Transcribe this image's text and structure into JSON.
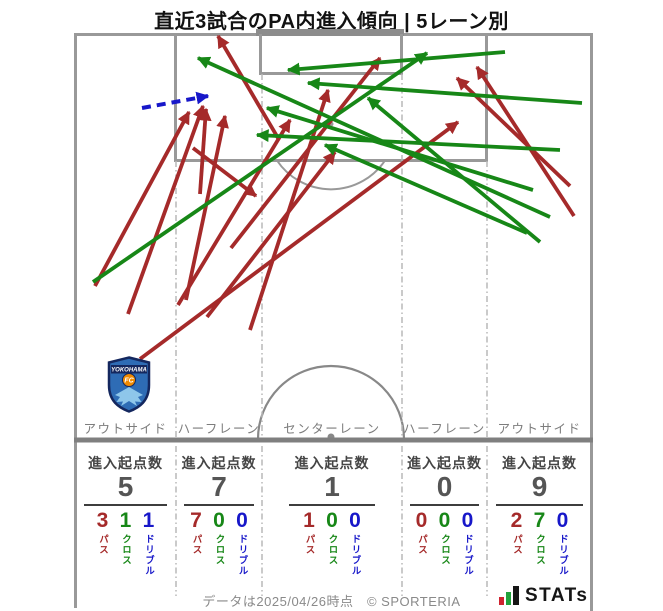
{
  "title": "直近3試合のPA内進入傾向 | 5レーン別",
  "stat_header": "進入起点数",
  "metric_labels": {
    "pass": "パス",
    "cross": "クロス",
    "dribble": "ドリブル"
  },
  "colors": {
    "pass": "#A52A2A",
    "cross": "#178717",
    "dribble": "#1717C9"
  },
  "lanes": [
    {
      "label": "アウトサイド",
      "origins": "5",
      "pass": "3",
      "cross": "1",
      "dribble": "1"
    },
    {
      "label": "ハーフレーン",
      "origins": "7",
      "pass": "7",
      "cross": "0",
      "dribble": "0"
    },
    {
      "label": "センターレーン",
      "origins": "1",
      "pass": "1",
      "cross": "0",
      "dribble": "0"
    },
    {
      "label": "ハーフレーン",
      "origins": "0",
      "pass": "0",
      "cross": "0",
      "dribble": "0"
    },
    {
      "label": "アウトサイド",
      "origins": "9",
      "pass": "2",
      "cross": "7",
      "dribble": "0"
    }
  ],
  "team_badge": {
    "name": "YOKOHAMA",
    "fc": "FC"
  },
  "footer": {
    "note": "データは2025/04/26時点　© SPORTERIA",
    "brand": "STATs"
  },
  "chart_data": {
    "type": "pitch-arrows",
    "title": "直近3試合のPA内進入傾向 | 5レーン別",
    "lane_summary": {
      "categories": [
        "アウトサイド",
        "ハーフレーン",
        "センターレーン",
        "ハーフレーン",
        "アウトサイド"
      ],
      "origins": [
        5,
        7,
        1,
        0,
        9
      ],
      "series": [
        {
          "name": "パス",
          "values": [
            3,
            7,
            1,
            0,
            2
          ]
        },
        {
          "name": "クロス",
          "values": [
            1,
            0,
            0,
            0,
            7
          ]
        },
        {
          "name": "ドリブル",
          "values": [
            1,
            0,
            0,
            0,
            0
          ]
        }
      ]
    },
    "arrows": [
      {
        "kind": "pass",
        "from": [
          95,
          286
        ],
        "to": [
          189,
          112
        ]
      },
      {
        "kind": "pass",
        "from": [
          128,
          314
        ],
        "to": [
          203,
          106
        ]
      },
      {
        "kind": "pass",
        "from": [
          140,
          359
        ],
        "to": [
          458,
          122
        ]
      },
      {
        "kind": "pass",
        "from": [
          200,
          194
        ],
        "to": [
          206,
          109
        ]
      },
      {
        "kind": "pass",
        "from": [
          186,
          300
        ],
        "to": [
          225,
          116
        ]
      },
      {
        "kind": "pass",
        "from": [
          193,
          148
        ],
        "to": [
          256,
          196
        ]
      },
      {
        "kind": "pass",
        "from": [
          207,
          317
        ],
        "to": [
          335,
          152
        ]
      },
      {
        "kind": "pass",
        "from": [
          178,
          305
        ],
        "to": [
          290,
          120
        ]
      },
      {
        "kind": "pass",
        "from": [
          231,
          248
        ],
        "to": [
          380,
          58
        ]
      },
      {
        "kind": "pass",
        "from": [
          250,
          330
        ],
        "to": [
          328,
          90
        ]
      },
      {
        "kind": "pass",
        "from": [
          278,
          138
        ],
        "to": [
          218,
          36
        ]
      },
      {
        "kind": "pass",
        "from": [
          570,
          186
        ],
        "to": [
          457,
          78
        ]
      },
      {
        "kind": "pass",
        "from": [
          574,
          216
        ],
        "to": [
          477,
          67
        ]
      },
      {
        "kind": "cross",
        "from": [
          93,
          282
        ],
        "to": [
          427,
          53
        ]
      },
      {
        "kind": "cross",
        "from": [
          533,
          190
        ],
        "to": [
          267,
          108
        ]
      },
      {
        "kind": "cross",
        "from": [
          550,
          217
        ],
        "to": [
          198,
          58
        ]
      },
      {
        "kind": "cross",
        "from": [
          540,
          242
        ],
        "to": [
          368,
          98
        ]
      },
      {
        "kind": "cross",
        "from": [
          505,
          52
        ],
        "to": [
          288,
          70
        ]
      },
      {
        "kind": "cross",
        "from": [
          582,
          103
        ],
        "to": [
          308,
          83
        ]
      },
      {
        "kind": "cross",
        "from": [
          560,
          150
        ],
        "to": [
          257,
          135
        ]
      },
      {
        "kind": "cross",
        "from": [
          527,
          233
        ],
        "to": [
          325,
          145
        ]
      },
      {
        "kind": "dribble",
        "from": [
          142,
          108
        ],
        "to": [
          208,
          96
        ]
      }
    ]
  }
}
